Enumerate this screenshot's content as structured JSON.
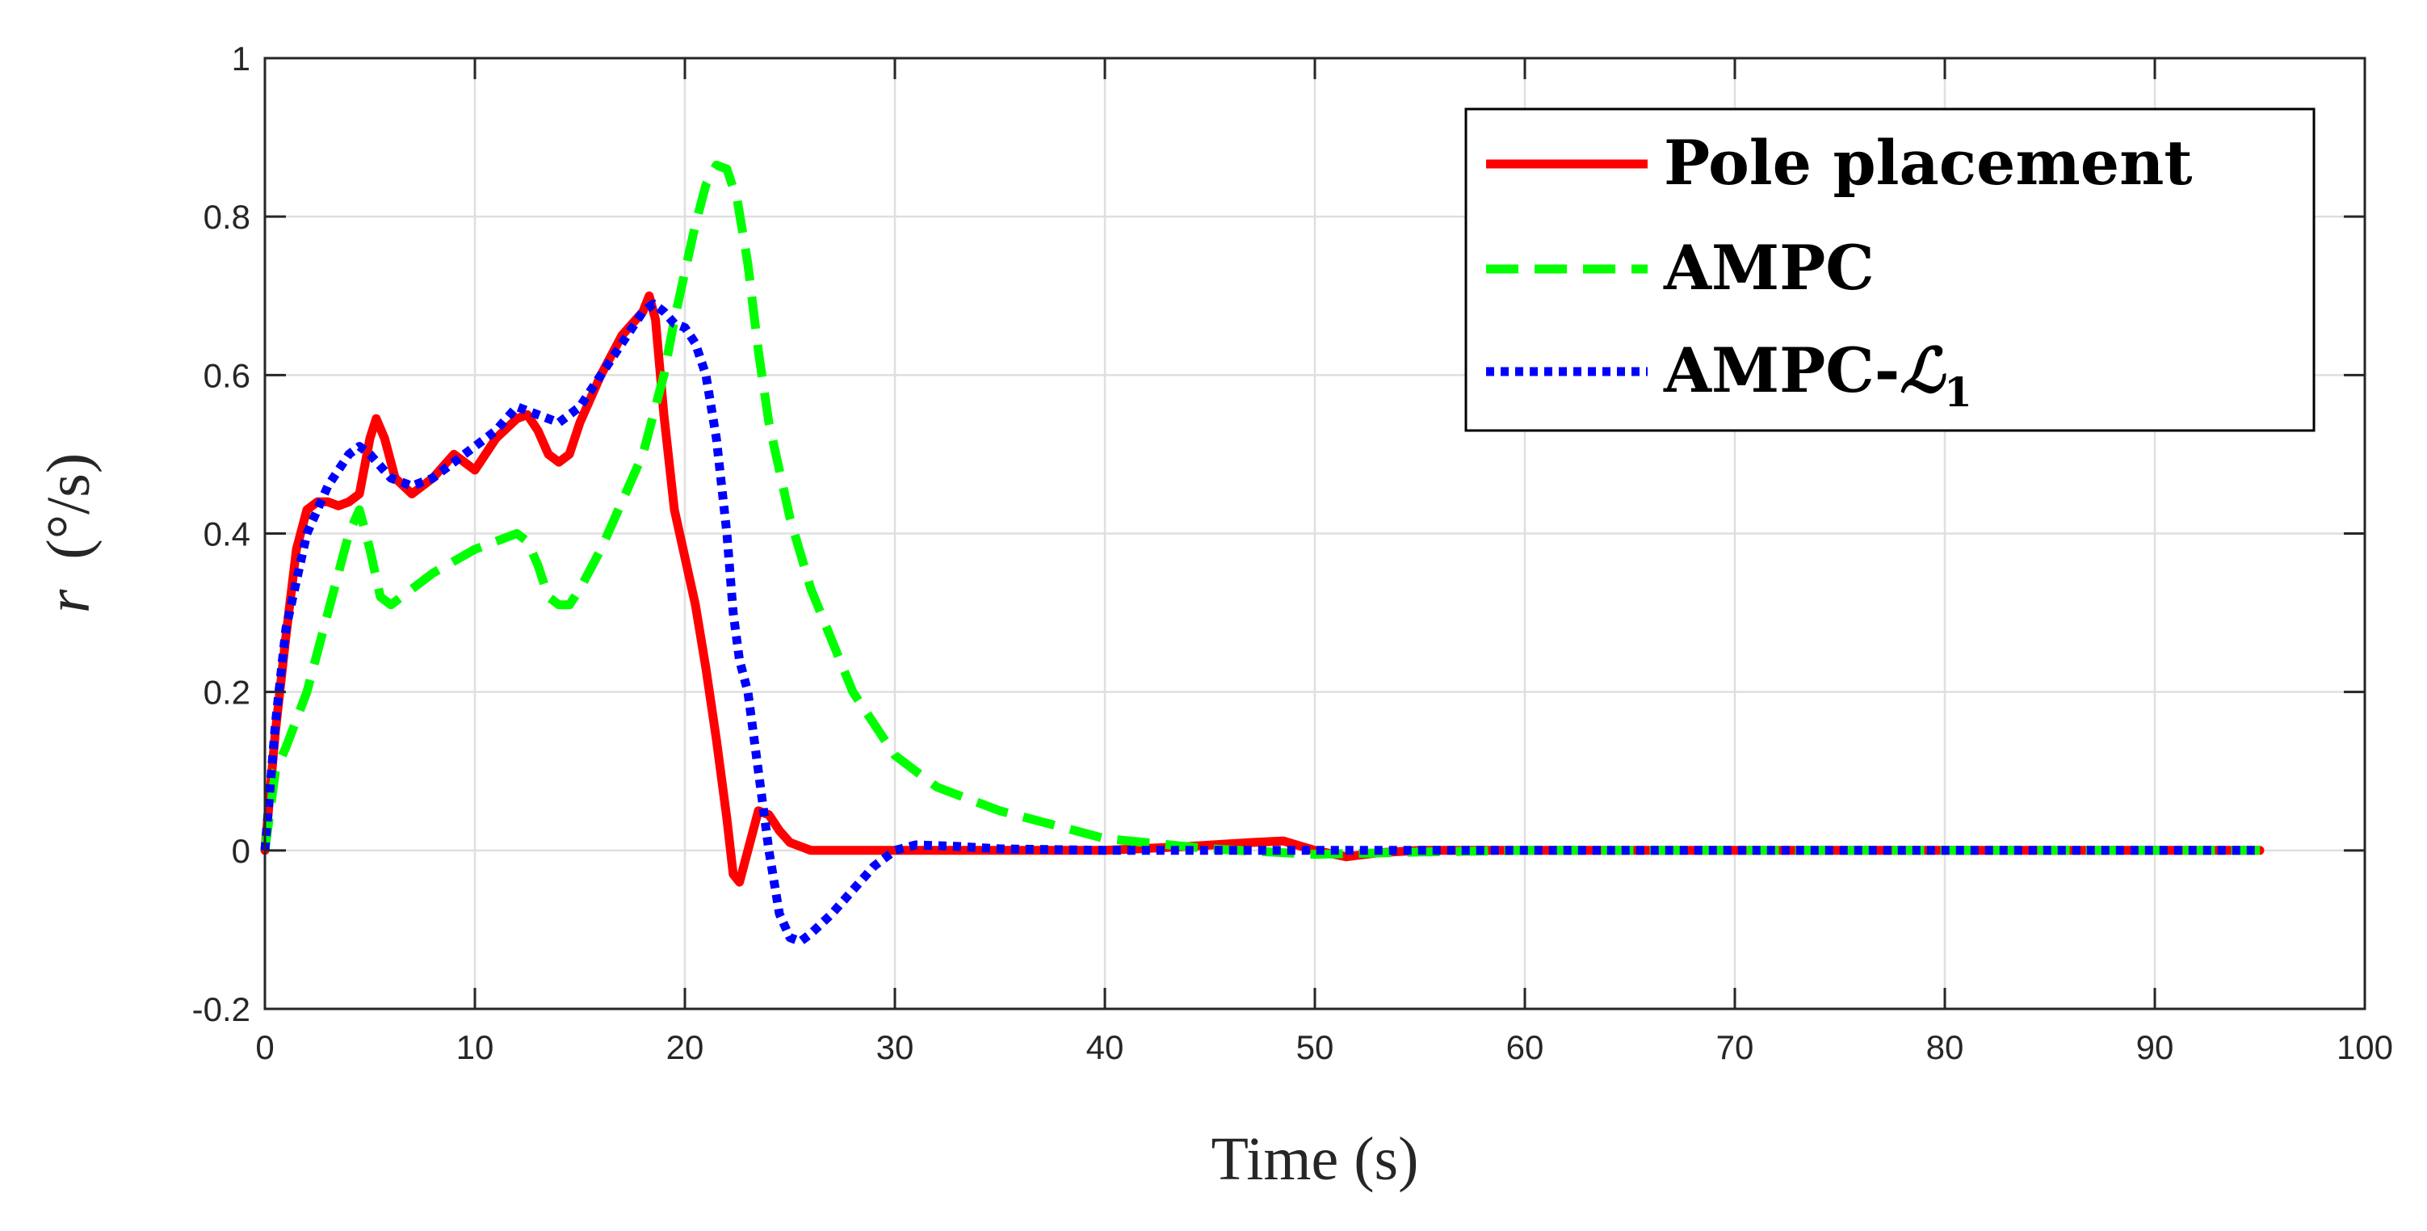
{
  "chart_data": {
    "type": "line",
    "xlabel": "Time (s)",
    "ylabel_var": "r",
    "ylabel_unit": "(°/s)",
    "xlim": [
      0,
      100
    ],
    "ylim": [
      -0.2,
      1
    ],
    "grid": true,
    "legend_position": "top-right",
    "xticks": [
      0,
      10,
      20,
      30,
      40,
      50,
      60,
      70,
      80,
      90,
      100
    ],
    "xtick_labels": [
      "0",
      "10",
      "20",
      "30",
      "40",
      "50",
      "60",
      "70",
      "80",
      "90",
      "100"
    ],
    "yticks": [
      -0.2,
      0,
      0.2,
      0.4,
      0.6,
      0.8,
      1
    ],
    "ytick_labels": [
      "-0.2",
      "0",
      "0.2",
      "0.4",
      "0.6",
      "0.8",
      "1"
    ],
    "series": [
      {
        "name": "Pole placement",
        "color": "#ff0000",
        "dash": "solid",
        "x": [
          0,
          0.5,
          1,
          1.5,
          2,
          2.5,
          3,
          3.5,
          4,
          4.5,
          5,
          5.3,
          5.7,
          6.2,
          7,
          8,
          9,
          9.5,
          10,
          10.5,
          11,
          12,
          12.5,
          13,
          13.5,
          14,
          14.5,
          15,
          16,
          17,
          18,
          18.3,
          18.6,
          19,
          19.5,
          20,
          20.5,
          21,
          21.5,
          22,
          22.3,
          22.6,
          23,
          23.5,
          24,
          24.5,
          25,
          26,
          27,
          30,
          40,
          44,
          47,
          48.5,
          50,
          51.5,
          53,
          55,
          60,
          70,
          80,
          90,
          95
        ],
        "y": [
          0,
          0.15,
          0.27,
          0.38,
          0.43,
          0.44,
          0.44,
          0.435,
          0.44,
          0.45,
          0.52,
          0.545,
          0.52,
          0.47,
          0.45,
          0.47,
          0.5,
          0.49,
          0.48,
          0.5,
          0.52,
          0.545,
          0.55,
          0.53,
          0.5,
          0.49,
          0.5,
          0.54,
          0.6,
          0.65,
          0.68,
          0.7,
          0.67,
          0.55,
          0.43,
          0.37,
          0.31,
          0.23,
          0.14,
          0.04,
          -0.03,
          -0.04,
          0.0,
          0.05,
          0.045,
          0.025,
          0.01,
          0.0,
          0.0,
          0.0,
          0.0,
          0.005,
          0.01,
          0.012,
          0.0,
          -0.008,
          -0.003,
          0.0,
          0.0,
          0.0,
          0.0,
          0.0,
          0.0
        ]
      },
      {
        "name": "AMPC",
        "color": "#00ff00",
        "dash": "dashed",
        "x": [
          0,
          0.5,
          1,
          2,
          3,
          4,
          4.5,
          5,
          5.5,
          6,
          7,
          8,
          10,
          12,
          12.5,
          13,
          13.5,
          14,
          14.5,
          15,
          16,
          17,
          18,
          18.5,
          19,
          19.5,
          20,
          20.5,
          21,
          21.5,
          22,
          22.5,
          23,
          23.5,
          24,
          25,
          26,
          28,
          30,
          32,
          35,
          40,
          45,
          50,
          55,
          60,
          70,
          80,
          90,
          95
        ],
        "y": [
          0,
          0.1,
          0.13,
          0.2,
          0.3,
          0.4,
          0.43,
          0.38,
          0.32,
          0.31,
          0.33,
          0.35,
          0.38,
          0.4,
          0.39,
          0.36,
          0.32,
          0.31,
          0.31,
          0.33,
          0.38,
          0.44,
          0.5,
          0.55,
          0.6,
          0.67,
          0.73,
          0.79,
          0.84,
          0.865,
          0.86,
          0.82,
          0.74,
          0.63,
          0.54,
          0.42,
          0.33,
          0.2,
          0.12,
          0.08,
          0.05,
          0.015,
          0.002,
          -0.005,
          -0.002,
          0.0,
          0.0,
          0.0,
          0.0,
          0.0
        ]
      },
      {
        "name": "AMPC-L1",
        "color": "#0000ff",
        "dash": "dotted",
        "x": [
          0,
          0.5,
          1,
          2,
          3,
          4,
          4.5,
          5,
          6,
          7,
          8,
          9,
          10,
          11,
          12,
          13,
          14,
          15,
          16,
          17,
          18,
          18.5,
          19,
          19.5,
          20,
          20.5,
          21,
          21.5,
          22,
          22.3,
          22.6,
          23,
          23.5,
          24,
          24.5,
          25,
          25.5,
          26,
          27,
          28,
          29,
          30,
          31,
          33,
          35,
          40,
          50,
          60,
          70,
          80,
          90,
          95
        ],
        "y": [
          0,
          0.16,
          0.28,
          0.4,
          0.46,
          0.5,
          0.51,
          0.5,
          0.47,
          0.46,
          0.47,
          0.49,
          0.51,
          0.53,
          0.56,
          0.55,
          0.54,
          0.56,
          0.6,
          0.64,
          0.68,
          0.69,
          0.68,
          0.665,
          0.66,
          0.64,
          0.6,
          0.52,
          0.4,
          0.3,
          0.24,
          0.2,
          0.1,
          0.0,
          -0.08,
          -0.11,
          -0.115,
          -0.105,
          -0.08,
          -0.05,
          -0.02,
          0.0,
          0.007,
          0.005,
          0.002,
          0.0,
          0.0,
          0.0,
          0.0,
          0.0,
          0.0,
          0.0
        ]
      }
    ]
  },
  "legend": {
    "items": [
      {
        "label": "Pole placement"
      },
      {
        "label": "AMPC"
      },
      {
        "label": "AMPC-",
        "script": "ℒ",
        "sub": "1"
      }
    ]
  }
}
